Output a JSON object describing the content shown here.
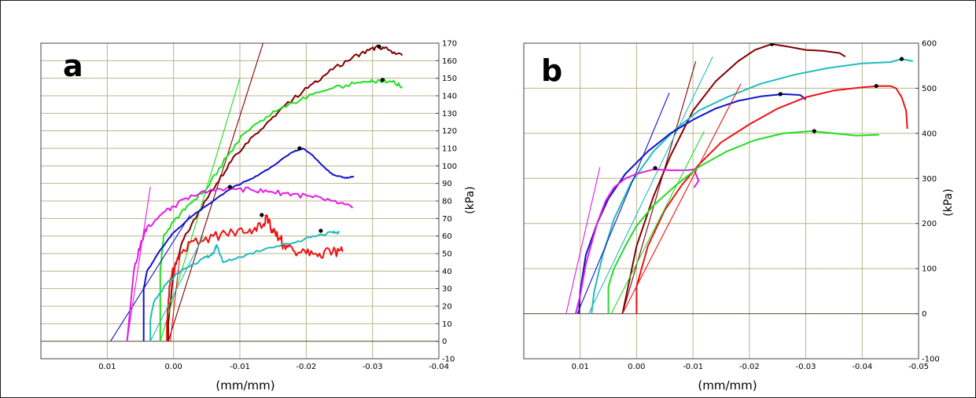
{
  "chart_data": [
    {
      "type": "line",
      "panel_label": "a",
      "xlabel": "(mm/mm)",
      "ylabel": "(kPa)",
      "xlim": [
        0.02,
        -0.04
      ],
      "ylim": [
        -10,
        170
      ],
      "xticks": [
        0.01,
        0.0,
        -0.01,
        -0.02,
        -0.03,
        -0.04
      ],
      "xtick_labels": [
        "0.01",
        "0.00",
        "-0.01",
        "-0.02",
        "-0.03",
        "-0.04"
      ],
      "yticks": [
        -10,
        0,
        10,
        20,
        30,
        40,
        50,
        60,
        70,
        80,
        90,
        100,
        110,
        120,
        130,
        140,
        150,
        160,
        170
      ],
      "grid": true,
      "series": [
        {
          "color": "#800000",
          "jitter": 1.2,
          "x": [
            0.0008,
            0.0008,
            0.0,
            -0.0015,
            -0.004,
            -0.0065,
            -0.009,
            -0.012,
            -0.015,
            -0.018,
            -0.021,
            -0.024,
            -0.027,
            -0.0295,
            -0.031,
            -0.0325,
            -0.0345
          ],
          "y": [
            0,
            10,
            40,
            58,
            75,
            90,
            105,
            117,
            128,
            138,
            147,
            155,
            162,
            166,
            168,
            166,
            163
          ],
          "peak": [
            -0.031,
            168
          ],
          "tangent": [
            [
              0.0008,
              0
            ],
            [
              -0.0135,
              170
            ]
          ]
        },
        {
          "color": "#22dd22",
          "jitter": 1.2,
          "x": [
            0.002,
            0.002,
            0.0015,
            0.0,
            -0.002,
            -0.005,
            -0.008,
            -0.0105,
            -0.014,
            -0.018,
            -0.022,
            -0.026,
            -0.0295,
            -0.031,
            -0.033,
            -0.0345
          ],
          "y": [
            0,
            40,
            60,
            68,
            77,
            87,
            105,
            118,
            128,
            136,
            142,
            146,
            148,
            149,
            148,
            145
          ],
          "peak": [
            -0.0315,
            149
          ],
          "tangent": [
            [
              0.002,
              0
            ],
            [
              -0.01,
              150
            ]
          ]
        },
        {
          "color": "#1111cc",
          "jitter": 0.3,
          "x": [
            0.0045,
            0.0045,
            0.004,
            0.002,
            0.0,
            -0.003,
            -0.006,
            -0.009,
            -0.012,
            -0.015,
            -0.018,
            -0.0195,
            -0.021,
            -0.0225,
            -0.024,
            -0.026,
            -0.0272
          ],
          "y": [
            0,
            30,
            40,
            52,
            62,
            72,
            80,
            88,
            93,
            100,
            108,
            110,
            106,
            100,
            95,
            93,
            94
          ],
          "peak": [
            -0.019,
            110
          ],
          "tangent": [
            [
              0.0095,
              0
            ],
            [
              -0.0025,
              72
            ]
          ]
        },
        {
          "color": "#e01ee0",
          "jitter": 1.5,
          "x": [
            0.007,
            0.006,
            0.005,
            0.004,
            0.002,
            0.0,
            -0.003,
            -0.006,
            -0.009,
            -0.012,
            -0.015,
            -0.018,
            -0.021,
            -0.024,
            -0.027
          ],
          "y": [
            0,
            40,
            55,
            65,
            72,
            77,
            83,
            86,
            87,
            86,
            85,
            84,
            82,
            80,
            76
          ],
          "peak": [
            -0.0085,
            88
          ],
          "tangent": [
            [
              0.007,
              0
            ],
            [
              0.0035,
              88
            ]
          ]
        },
        {
          "color": "#ee1111",
          "jitter": 3,
          "x": [
            0.001,
            0.001,
            0.0005,
            -0.001,
            -0.003,
            -0.006,
            -0.009,
            -0.0115,
            -0.0135,
            -0.014,
            -0.015,
            -0.0162,
            -0.0165,
            -0.018,
            -0.02,
            -0.022,
            -0.024,
            -0.0255
          ],
          "y": [
            0,
            10,
            35,
            50,
            57,
            60,
            62,
            64,
            66,
            72,
            62,
            58,
            55,
            52,
            50,
            50,
            51,
            51
          ],
          "peak": [
            -0.0133,
            72
          ],
          "tangent": [
            [
              0.0005,
              0
            ],
            [
              -0.001,
              50
            ]
          ]
        },
        {
          "color": "#22bbbb",
          "jitter": 0.8,
          "x": [
            0.0035,
            0.0035,
            0.003,
            0.001,
            -0.001,
            -0.003,
            -0.005,
            -0.006,
            -0.0065,
            -0.0075,
            -0.01,
            -0.014,
            -0.018,
            -0.021,
            -0.024,
            -0.025
          ],
          "y": [
            0,
            12,
            22,
            33,
            40,
            44,
            48,
            50,
            55,
            45,
            48,
            53,
            56,
            60,
            62,
            62
          ],
          "peak": [
            -0.0222,
            63
          ],
          "tangent": [
            [
              0.0035,
              0
            ],
            [
              -0.0045,
              60
            ]
          ]
        }
      ]
    },
    {
      "type": "line",
      "panel_label": "b",
      "xlabel": "(mm/mm)",
      "ylabel": "(kPa)",
      "xlim": [
        0.02,
        -0.05
      ],
      "ylim": [
        -100,
        600
      ],
      "xticks": [
        0.01,
        0.0,
        -0.01,
        -0.02,
        -0.03,
        -0.04,
        -0.05
      ],
      "xtick_labels": [
        "0.01",
        "0.00",
        "-0.01",
        "-0.02",
        "-0.03",
        "-0.04",
        "-0.05"
      ],
      "yticks": [
        -100,
        0,
        100,
        200,
        300,
        400,
        500,
        600
      ],
      "grid": true,
      "series": [
        {
          "color": "#800000",
          "x": [
            0.0025,
            0.0015,
            0.0,
            -0.003,
            -0.006,
            -0.01,
            -0.014,
            -0.018,
            -0.021,
            -0.024,
            -0.027,
            -0.03,
            -0.033,
            -0.036,
            -0.037
          ],
          "y": [
            0,
            60,
            150,
            260,
            350,
            450,
            515,
            560,
            585,
            598,
            592,
            585,
            583,
            578,
            570
          ],
          "peak": [
            -0.024,
            598
          ],
          "tangent": [
            [
              0.0025,
              0
            ],
            [
              -0.0105,
              560
            ]
          ]
        },
        {
          "color": "#22bbbb",
          "x": [
            0.008,
            0.0075,
            0.006,
            0.004,
            0.001,
            -0.003,
            -0.007,
            -0.011,
            -0.016,
            -0.022,
            -0.028,
            -0.034,
            -0.04,
            -0.045,
            -0.047,
            -0.049
          ],
          "y": [
            0,
            50,
            130,
            210,
            290,
            360,
            410,
            450,
            480,
            510,
            530,
            545,
            555,
            558,
            565,
            560
          ],
          "peak": [
            -0.047,
            565
          ],
          "tangent": [
            [
              0.0085,
              0
            ],
            [
              -0.0135,
              570
            ]
          ]
        },
        {
          "color": "#1111cc",
          "x": [
            0.0102,
            0.01,
            0.009,
            0.007,
            0.005,
            0.002,
            -0.002,
            -0.006,
            -0.01,
            -0.014,
            -0.018,
            -0.022,
            -0.026,
            -0.029,
            -0.03
          ],
          "y": [
            0,
            50,
            130,
            200,
            255,
            310,
            360,
            400,
            430,
            455,
            472,
            482,
            487,
            485,
            475
          ],
          "peak": [
            -0.0255,
            487
          ],
          "tangent": [
            [
              0.0105,
              0
            ],
            [
              -0.0058,
              490
            ]
          ]
        },
        {
          "color": "#e01ee0",
          "x": [
            0.0108,
            0.01,
            0.009,
            0.007,
            0.0055,
            0.004,
            0.002,
            0.0,
            -0.003,
            -0.006,
            -0.009,
            -0.0102,
            -0.0105,
            -0.011,
            -0.0102
          ],
          "y": [
            0,
            40,
            110,
            200,
            250,
            280,
            300,
            310,
            320,
            318,
            318,
            320,
            310,
            295,
            280
          ],
          "peak": [
            -0.0033,
            323
          ],
          "tangent": [
            [
              0.0125,
              0
            ],
            [
              0.0065,
              325
            ]
          ]
        },
        {
          "color": "#ee1111",
          "x": [
            0.0,
            0.0,
            -0.002,
            -0.005,
            -0.008,
            -0.011,
            -0.015,
            -0.02,
            -0.025,
            -0.03,
            -0.035,
            -0.04,
            -0.043,
            -0.045,
            -0.046,
            -0.047,
            -0.0478,
            -0.048
          ],
          "y": [
            0,
            60,
            150,
            230,
            285,
            330,
            380,
            420,
            455,
            480,
            495,
            502,
            505,
            505,
            500,
            480,
            450,
            410
          ],
          "peak": [
            -0.0425,
            505
          ],
          "tangent": [
            [
              0.0025,
              0
            ],
            [
              -0.0185,
              510
            ]
          ]
        },
        {
          "color": "#22dd22",
          "x": [
            0.005,
            0.005,
            0.004,
            0.002,
            0.0,
            -0.003,
            -0.007,
            -0.011,
            -0.016,
            -0.021,
            -0.026,
            -0.031,
            -0.035,
            -0.039,
            -0.043
          ],
          "y": [
            0,
            60,
            100,
            150,
            195,
            240,
            285,
            325,
            360,
            385,
            400,
            405,
            400,
            395,
            397
          ],
          "peak": [
            -0.0315,
            405
          ],
          "tangent": [
            [
              0.0045,
              0
            ],
            [
              -0.012,
              405
            ]
          ]
        }
      ]
    }
  ]
}
